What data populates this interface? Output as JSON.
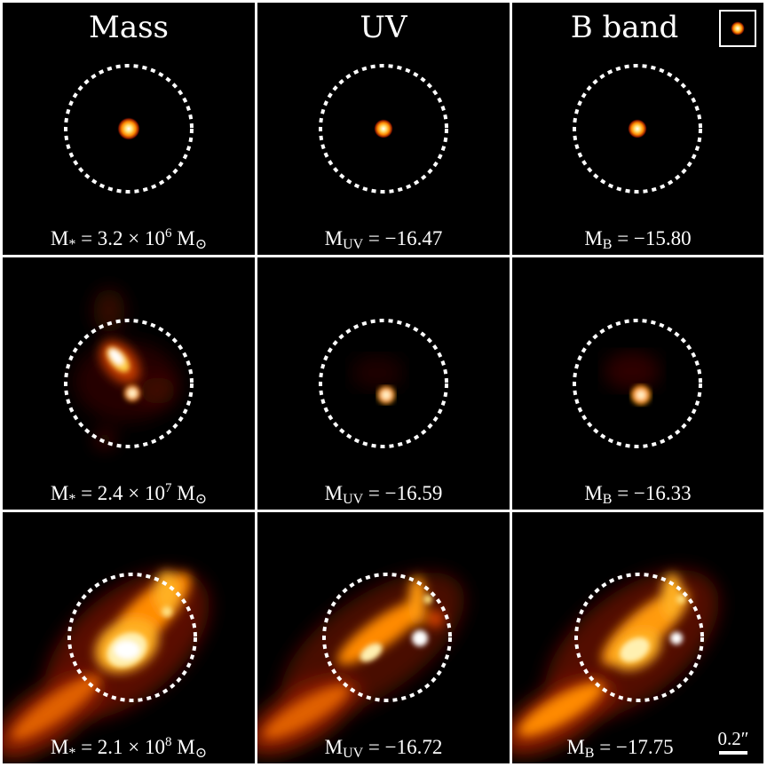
{
  "columns": [
    {
      "title": "Mass"
    },
    {
      "title": "UV"
    },
    {
      "title": "B band"
    }
  ],
  "rows": [
    {
      "mass": {
        "prefix": "M",
        "sub": "*",
        "eq": " = 3.2 × 10",
        "exp": "6",
        "unit": " M",
        "unit_sub": "⊙"
      },
      "uv": {
        "prefix": "M",
        "sub": "UV",
        "eq": " = −16.47"
      },
      "b": {
        "prefix": "M",
        "sub": "B",
        "eq": " = −15.80"
      }
    },
    {
      "mass": {
        "prefix": "M",
        "sub": "*",
        "eq": " = 2.4 × 10",
        "exp": "7",
        "unit": " M",
        "unit_sub": "⊙"
      },
      "uv": {
        "prefix": "M",
        "sub": "UV",
        "eq": " = −16.59"
      },
      "b": {
        "prefix": "M",
        "sub": "B",
        "eq": " = −16.33"
      }
    },
    {
      "mass": {
        "prefix": "M",
        "sub": "*",
        "eq": " = 2.1 × 10",
        "exp": "8",
        "unit": " M",
        "unit_sub": "⊙"
      },
      "uv": {
        "prefix": "M",
        "sub": "UV",
        "eq": " = −16.72"
      },
      "b": {
        "prefix": "M",
        "sub": "B",
        "eq": " = −17.75"
      }
    }
  ],
  "scale_bar": {
    "label": "0.2″"
  },
  "colors": {
    "background": "#000000",
    "aperture": "#ffffff",
    "colormap": [
      "#000000",
      "#5a0a00",
      "#c23a00",
      "#ff8a00",
      "#ffd24a",
      "#ffffff"
    ]
  }
}
